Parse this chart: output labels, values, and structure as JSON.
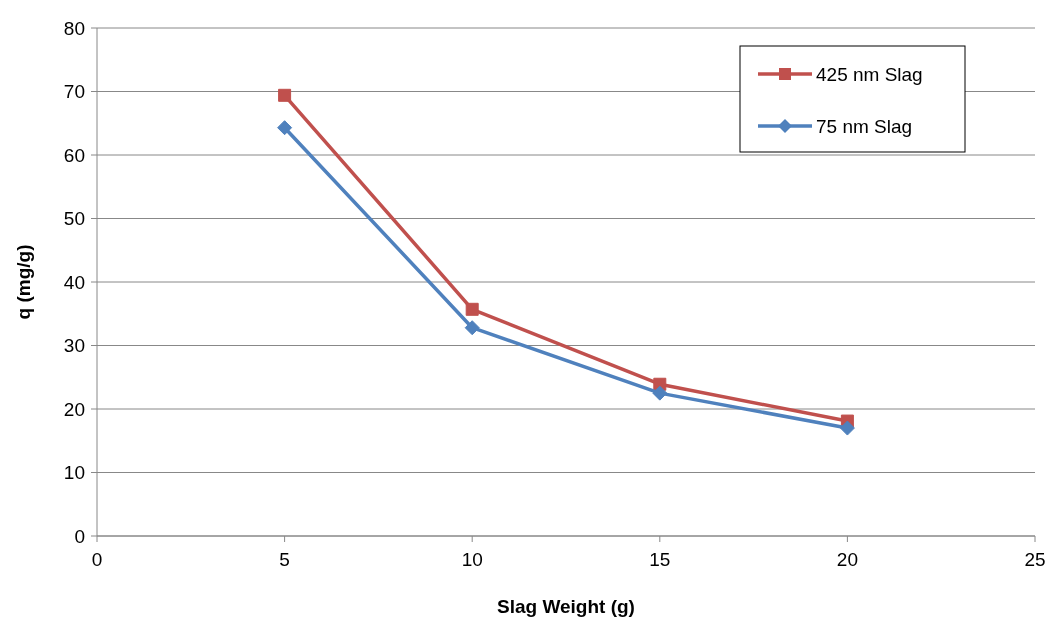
{
  "chart_data": {
    "type": "line",
    "xlabel": "Slag Weight (g)",
    "ylabel": "q (mg/g)",
    "x": [
      5,
      10,
      15,
      20
    ],
    "series": [
      {
        "name": "425 nm Slag",
        "color": "#c0504d",
        "marker": "square",
        "values": [
          69.4,
          35.7,
          23.9,
          18.1
        ]
      },
      {
        "name": "75 nm Slag",
        "color": "#4f81bd",
        "marker": "diamond",
        "values": [
          64.3,
          32.8,
          22.5,
          17.0
        ]
      }
    ],
    "xlim": [
      0,
      25
    ],
    "xticks": [
      0,
      5,
      10,
      15,
      20,
      25
    ],
    "ylim": [
      0,
      80
    ],
    "yticks": [
      0,
      10,
      20,
      30,
      40,
      50,
      60,
      70,
      80
    ],
    "grid": "y",
    "legend": "top right",
    "line_style": "solid"
  }
}
